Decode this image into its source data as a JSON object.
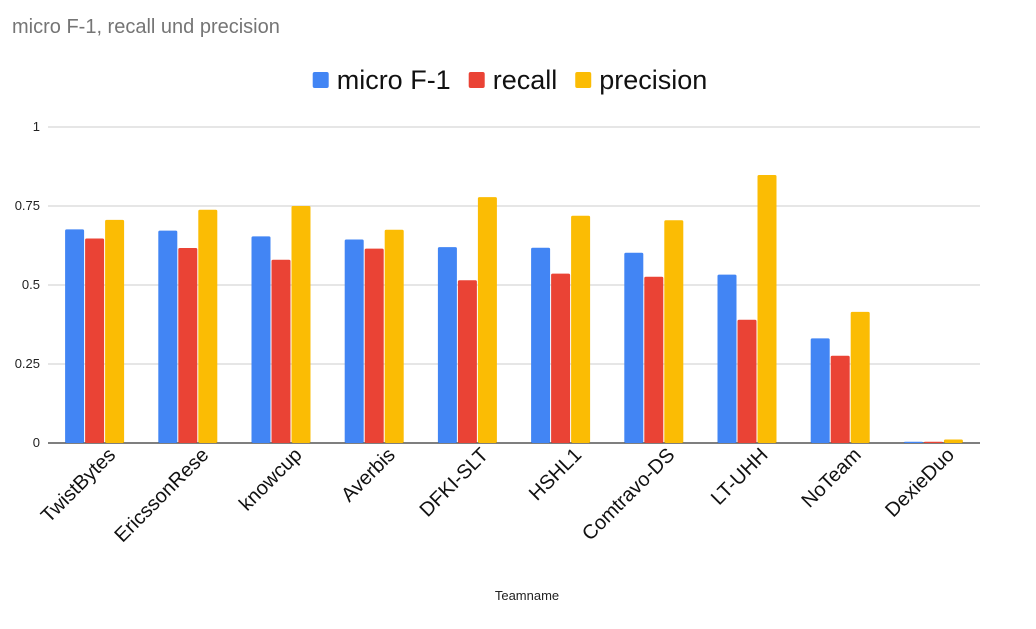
{
  "chart_data": {
    "type": "bar",
    "title": "micro F-1, recall und precision",
    "xlabel": "Teamname",
    "ylabel": "",
    "ylim": [
      0,
      1
    ],
    "yticks": [
      "0",
      "0.25",
      "0.5",
      "0.75",
      "1"
    ],
    "ytick_values": [
      0,
      0.25,
      0.5,
      0.75,
      1
    ],
    "grid": true,
    "legend": "top-center",
    "categories": [
      "TwistBytes",
      "EricssonRese",
      "knowcup",
      "Averbis",
      "DFKI-SLT",
      "HSHL1",
      "Comtravo-DS",
      "LT-UHH",
      "NoTeam",
      "DexieDuo"
    ],
    "series": [
      {
        "name": "micro F-1",
        "color": "#4285F4",
        "values": [
          0.676,
          0.672,
          0.654,
          0.644,
          0.62,
          0.618,
          0.602,
          0.533,
          0.331,
          0.004
        ]
      },
      {
        "name": "recall",
        "color": "#EA4335",
        "values": [
          0.647,
          0.617,
          0.58,
          0.615,
          0.515,
          0.536,
          0.526,
          0.39,
          0.276,
          0.004
        ]
      },
      {
        "name": "precision",
        "color": "#FBBC04",
        "values": [
          0.706,
          0.738,
          0.75,
          0.675,
          0.778,
          0.719,
          0.705,
          0.848,
          0.415,
          0.011
        ]
      }
    ]
  }
}
